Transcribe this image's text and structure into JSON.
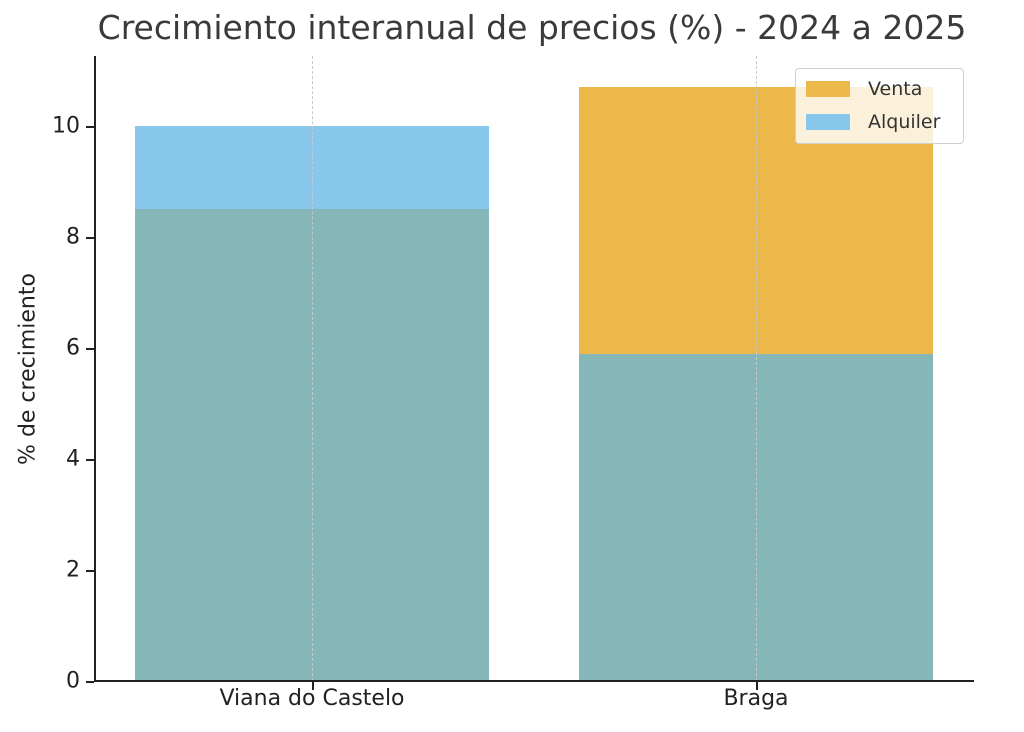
{
  "chart_data": {
    "type": "bar",
    "title": "Crecimiento interanual de precios (%) - 2024 a 2025",
    "xlabel": "",
    "ylabel": "% de crecimiento",
    "categories": [
      "Viana do Castelo",
      "Braga"
    ],
    "series": [
      {
        "name": "Venta",
        "values": [
          8.5,
          10.7
        ],
        "color": "#E8A817"
      },
      {
        "name": "Alquiler",
        "values": [
          10.0,
          5.9
        ],
        "color": "#5DB4E4"
      }
    ],
    "overlap_color": "#85B6B8",
    "ylim": [
      0,
      11.25
    ],
    "yticks": [
      0,
      2,
      4,
      6,
      8,
      10
    ],
    "grid": {
      "x": true,
      "y": false,
      "style": "dashed"
    },
    "legend_position": "upper right",
    "bars_overlaid": true
  },
  "title": "Crecimiento interanual de precios (%) - 2024 a 2025",
  "ylabel": "% de crecimiento",
  "yticks": [
    "0",
    "2",
    "4",
    "6",
    "8",
    "10"
  ],
  "xticks": [
    "Viana do Castelo",
    "Braga"
  ],
  "legend": [
    "Venta",
    "Alquiler"
  ]
}
